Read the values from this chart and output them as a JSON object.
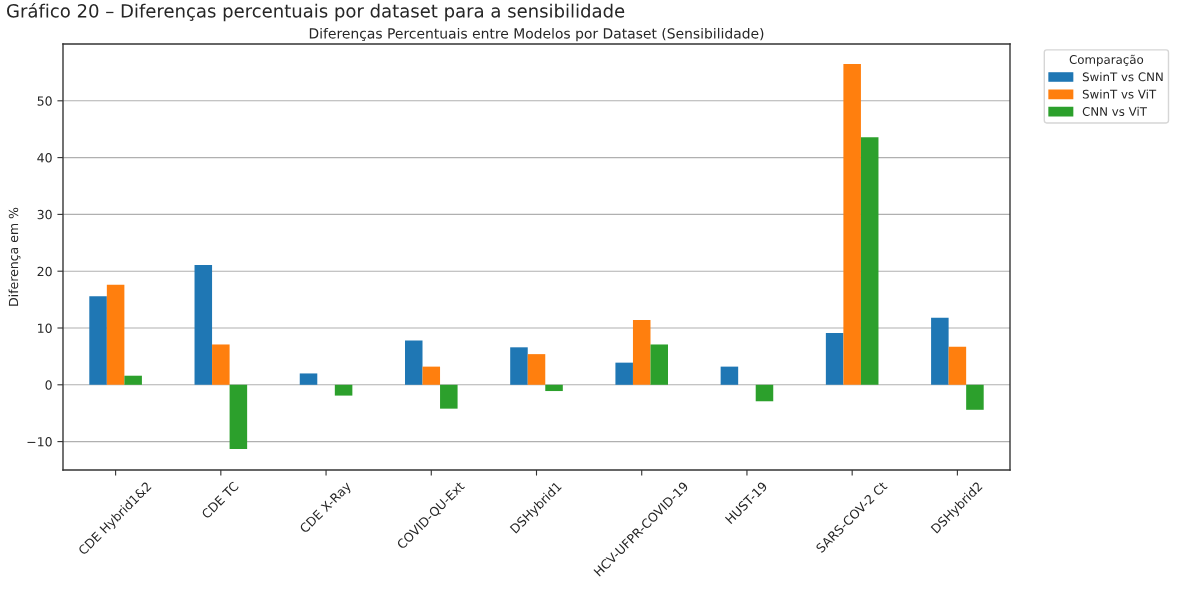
{
  "chart_data": {
    "type": "bar",
    "annotations": [
      "Gráfico 20 – Diferenças percentuais por dataset para a sensibilidade"
    ],
    "title": "Diferenças Percentuais entre Modelos por Dataset (Sensibilidade)",
    "ylabel": "Diferença em %",
    "legend_title": "Comparação",
    "categories": [
      "CDE Hybrid1&2",
      "CDE TC",
      "CDE X-Ray",
      "COVID-QU-Ext",
      "DSHybrid1",
      "HCV-UFPR-COVID-19",
      "HUST-19",
      "SARS-COV-2 Ct",
      "DSHybrid2"
    ],
    "series": [
      {
        "name": "SwinT vs CNN",
        "color": "#1f77b4",
        "values": [
          15.6,
          21.1,
          2.0,
          7.8,
          6.6,
          3.9,
          3.2,
          9.1,
          11.8
        ]
      },
      {
        "name": "SwinT vs ViT",
        "color": "#ff7f0e",
        "values": [
          17.6,
          7.1,
          0,
          3.2,
          5.4,
          11.4,
          0,
          56.5,
          6.7
        ]
      },
      {
        "name": "CNN vs ViT",
        "color": "#2ca02c",
        "values": [
          1.6,
          -11.3,
          -1.9,
          -4.2,
          -1.1,
          7.1,
          -2.9,
          43.6,
          -4.4
        ]
      }
    ],
    "ylim": [
      -15,
      60
    ],
    "yticks": [
      {
        "value": -10,
        "label": "−10"
      },
      0,
      10,
      20,
      30,
      40,
      50
    ],
    "grid": "y",
    "legend": "top right"
  }
}
